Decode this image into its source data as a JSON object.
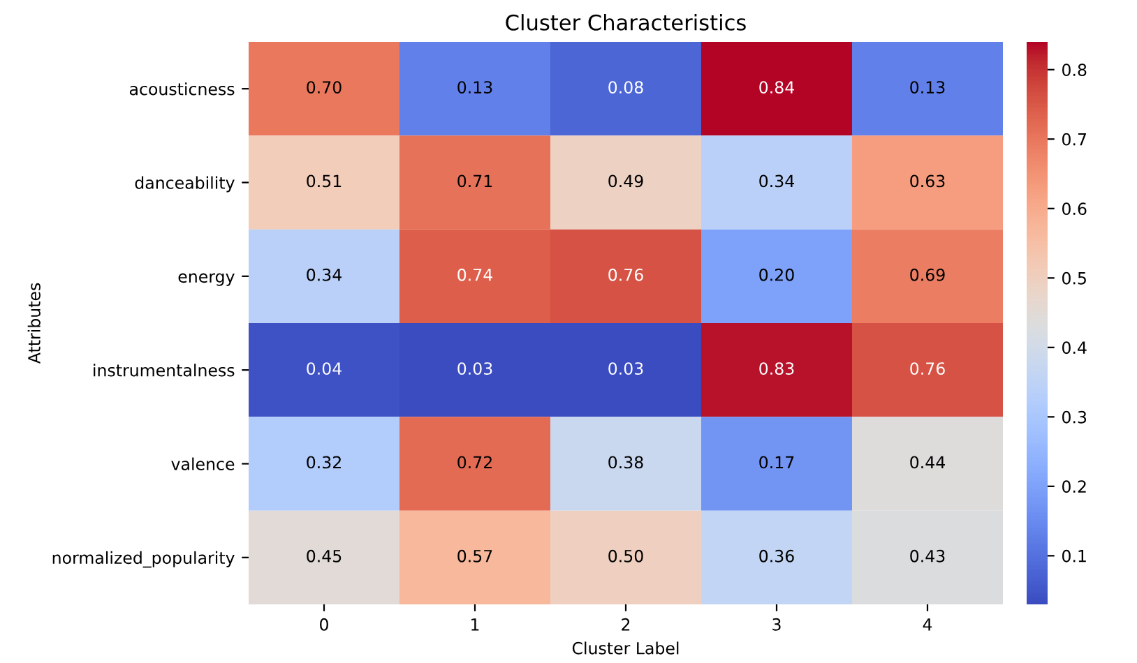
{
  "chart_data": {
    "type": "heatmap",
    "title": "Cluster Characteristics",
    "xlabel": "Cluster Label",
    "ylabel": "Attributes",
    "categories": [
      "0",
      "1",
      "2",
      "3",
      "4"
    ],
    "y_categories": [
      "acousticness",
      "danceability",
      "energy",
      "instrumentalness",
      "valence",
      "normalized_popularity"
    ],
    "cells": [
      [
        0.7,
        0.13,
        0.08,
        0.84,
        0.13
      ],
      [
        0.51,
        0.71,
        0.49,
        0.34,
        0.63
      ],
      [
        0.34,
        0.74,
        0.76,
        0.2,
        0.69
      ],
      [
        0.04,
        0.03,
        0.03,
        0.83,
        0.76
      ],
      [
        0.32,
        0.72,
        0.38,
        0.17,
        0.44
      ],
      [
        0.45,
        0.57,
        0.5,
        0.36,
        0.43
      ]
    ],
    "cell_labels": [
      [
        "0.70",
        "0.13",
        "0.08",
        "0.84",
        "0.13"
      ],
      [
        "0.51",
        "0.71",
        "0.49",
        "0.34",
        "0.63"
      ],
      [
        "0.34",
        "0.74",
        "0.76",
        "0.20",
        "0.69"
      ],
      [
        "0.04",
        "0.03",
        "0.03",
        "0.83",
        "0.76"
      ],
      [
        "0.32",
        "0.72",
        "0.38",
        "0.17",
        "0.44"
      ],
      [
        "0.45",
        "0.57",
        "0.50",
        "0.36",
        "0.43"
      ]
    ],
    "clim": [
      0.03,
      0.84
    ],
    "cticks": [
      0.1,
      0.2,
      0.3,
      0.4,
      0.5,
      0.6,
      0.7,
      0.8
    ]
  }
}
